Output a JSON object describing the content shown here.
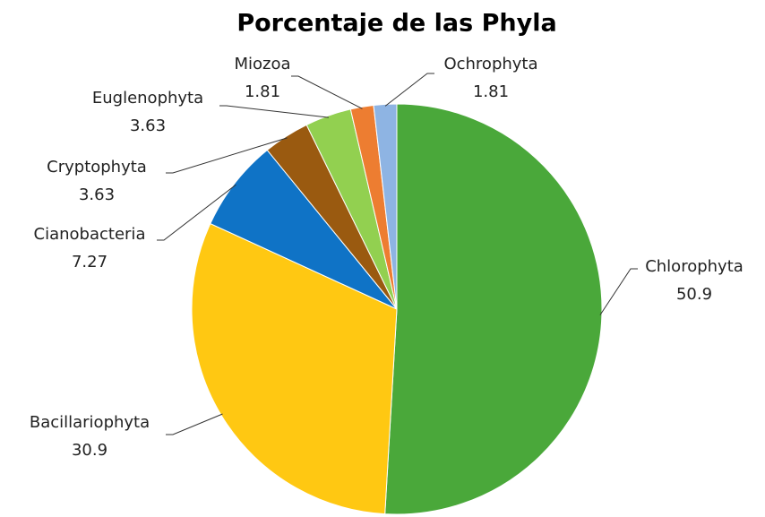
{
  "chart_data": {
    "type": "pie",
    "title": "Porcentaje de las Phyla",
    "categories": [
      "Chlorophyta",
      "Bacillariophyta",
      "Cianobacteria",
      "Cryptophyta",
      "Euglenophyta",
      "Miozoa",
      "Ochrophyta"
    ],
    "values": [
      50.9,
      30.9,
      7.27,
      3.63,
      3.63,
      1.81,
      1.81
    ],
    "colors": [
      "#4aa83a",
      "#ffc812",
      "#0f73c6",
      "#9a5a10",
      "#92d050",
      "#ed7d31",
      "#8eb4e3"
    ]
  }
}
